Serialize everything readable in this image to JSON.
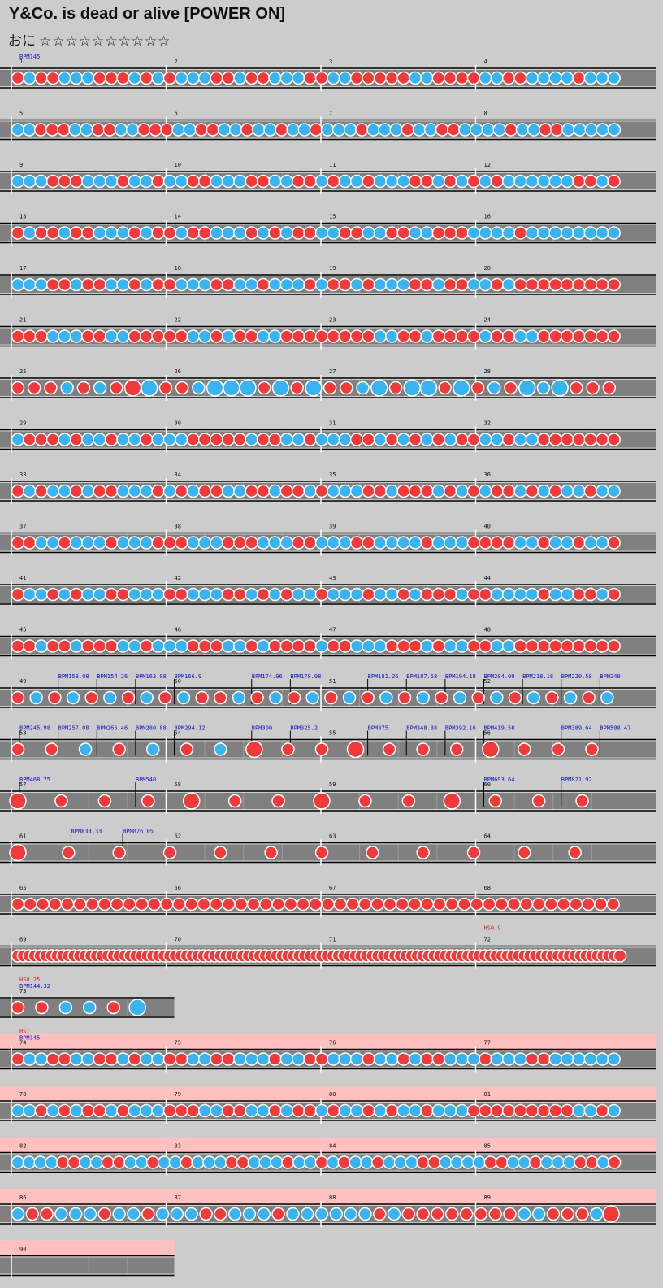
{
  "song": {
    "title": "Y&Co. is dead or alive [POWER ON]"
  },
  "course": {
    "label": "おに",
    "stars": "☆☆☆☆☆☆☆☆☆☆"
  },
  "colors": {
    "don": "#f23a3a",
    "ka": "#3ab4f0",
    "lane": "#808080",
    "gogo": "#ffc0c0",
    "bpm_text": "#1414c8",
    "hs_text": "#e02020"
  },
  "rows": [
    {
      "measures": [
        1,
        2,
        3,
        4
      ],
      "labels": [
        {
          "m": 1,
          "t": "BPM145",
          "k": "bpm"
        }
      ],
      "notes": "rbrrbbbrrrbrbrbbbrrbrrbbbrrbbrrrrrbbrrrrbbrrbbbbrbbb"
    },
    {
      "measures": [
        5,
        6,
        7,
        8
      ],
      "notes": "bbrrrbbrrbbrrrbbrrbbrbbrbbrbbbrbbbrbbrrbbbbrbbrrbbbbb"
    },
    {
      "measures": [
        9,
        10,
        11,
        12
      ],
      "notes": "bbbrrrbbbrbbrbbrrbbbrrbbrrbrbbrbbbrrbrbrbrbbbbbbrrbr"
    },
    {
      "measures": [
        13,
        14,
        15,
        16
      ],
      "notes": "rbrrbrrbbbrbrrbrrbbbrbrbrrbbrrbbrrbbrrrbbbbrbbbbbbbb"
    },
    {
      "measures": [
        17,
        18,
        19,
        20
      ],
      "notes": "bbbrrbrrbbrbrrbbbrrbbrbbbrbrrbrbbbrrbrrbbrbrrrrrrrrr"
    },
    {
      "measures": [
        21,
        22,
        23,
        24
      ],
      "notes": "rrrbbbrrbbrrrrrbbrbrrbbrrrrrrrrbbrrbrrrrbrrbbrrrrrrr"
    },
    {
      "measures": [
        25,
        26,
        27,
        28
      ],
      "notes": "rrrbrbrRBrrbBBBrBrBrrbBrBBrBrbrBbBrrr"
    },
    {
      "measures": [
        29,
        30,
        31,
        32
      ],
      "notes": "brrrbrbbrbbrbbbrrrrrbrrbbrbbbrrbrbrbrbrrbbrbbrrrrrrr"
    },
    {
      "measures": [
        33,
        34,
        35,
        36
      ],
      "notes": "rbrbbrbrrbbbrbrbrrbbrrbrrbrbbbrrbrrrbrbrbrrbrbrbbrbb"
    },
    {
      "measures": [
        37,
        38,
        39,
        40
      ],
      "notes": "rrbbrbbbrbbbrrrbbbrrrbbbrrbbbrrbbbbrbbbrrrrbbrbbrbbr"
    },
    {
      "measures": [
        41,
        42,
        43,
        44
      ],
      "notes": "rbbrbrbbrrbbbrrbbbrrbrbrbbrbbbrbbrbrrrbrrbbbbrbbrrbr"
    },
    {
      "measures": [
        45,
        46,
        47,
        48
      ],
      "notes": "rrbrrbrrrbbrbbbrrrbbrbrrrrbrrbbbrrrbrbbrrbbrrrrrrrrr"
    },
    {
      "measures": [
        49,
        50,
        51,
        52
      ],
      "labels": [
        {
          "m": 49,
          "f": 0.25,
          "t": "BPM153.08",
          "k": "bpm",
          "tick": true
        },
        {
          "m": 49,
          "f": 0.5,
          "t": "BPM154.26",
          "k": "bpm",
          "tick": true
        },
        {
          "m": 49,
          "f": 0.75,
          "t": "BPM163.08",
          "k": "bpm",
          "tick": true
        },
        {
          "m": 50,
          "f": 0,
          "t": "BPM166.9",
          "k": "bpm",
          "tick": true
        },
        {
          "m": 50,
          "f": 0.5,
          "t": "BPM174.96",
          "k": "bpm",
          "tick": true
        },
        {
          "m": 50,
          "f": 0.75,
          "t": "BPM178.08",
          "k": "bpm",
          "tick": true
        },
        {
          "m": 51,
          "f": 0.25,
          "t": "BPM181.26",
          "k": "bpm",
          "tick": true
        },
        {
          "m": 51,
          "f": 0.5,
          "t": "BPM187.58",
          "k": "bpm",
          "tick": true
        },
        {
          "m": 51,
          "f": 0.75,
          "t": "BPM194.18",
          "k": "bpm",
          "tick": true
        },
        {
          "m": 52,
          "f": 0,
          "t": "BPM204.09",
          "k": "bpm",
          "tick": true
        },
        {
          "m": 52,
          "f": 0.25,
          "t": "BPM218.18",
          "k": "bpm",
          "tick": true
        },
        {
          "m": 52,
          "f": 0.5,
          "t": "BPM220.58",
          "k": "bpm",
          "tick": true
        },
        {
          "m": 52,
          "f": 0.75,
          "t": "BPM240",
          "k": "bpm",
          "tick": true
        }
      ],
      "notes": "rbrbrbrbrbrrbrbrbrbrbrbrbrbrbrbrb"
    },
    {
      "measures": [
        53,
        54,
        55,
        56
      ],
      "labels": [
        {
          "m": 53,
          "f": 0,
          "t": "BPM245.98",
          "k": "bpm",
          "tick": true
        },
        {
          "m": 53,
          "f": 0.25,
          "t": "BPM257.08",
          "k": "bpm",
          "tick": true
        },
        {
          "m": 53,
          "f": 0.5,
          "t": "BPM265.46",
          "k": "bpm",
          "tick": true
        },
        {
          "m": 53,
          "f": 0.75,
          "t": "BPM280.88",
          "k": "bpm",
          "tick": true
        },
        {
          "m": 54,
          "f": 0,
          "t": "BPM294.12",
          "k": "bpm",
          "tick": true
        },
        {
          "m": 54,
          "f": 0.5,
          "t": "BPM300",
          "k": "bpm",
          "tick": true
        },
        {
          "m": 54,
          "f": 0.75,
          "t": "BPM325.2",
          "k": "bpm",
          "tick": true
        },
        {
          "m": 55,
          "f": 0.25,
          "t": "BPM375",
          "k": "bpm",
          "tick": true
        },
        {
          "m": 55,
          "f": 0.5,
          "t": "BPM348.88",
          "k": "bpm",
          "tick": true
        },
        {
          "m": 55,
          "f": 0.75,
          "t": "BPM392.16",
          "k": "bpm",
          "tick": true
        },
        {
          "m": 56,
          "f": 0,
          "t": "BPM419.58",
          "k": "bpm",
          "tick": true
        },
        {
          "m": 56,
          "f": 0.5,
          "t": "BPM389.64",
          "k": "bpm",
          "tick": true
        },
        {
          "m": 56,
          "f": 0.75,
          "t": "BPM508.47",
          "k": "bpm",
          "tick": true
        }
      ],
      "notes": "rrbrbrbRrrRrrrRrrr"
    },
    {
      "measures": [
        57,
        58,
        59,
        60
      ],
      "labels": [
        {
          "m": 57,
          "f": 0,
          "t": "BPM468.75",
          "k": "bpm",
          "tick": true
        },
        {
          "m": 57,
          "f": 0.75,
          "t": "BPM540",
          "k": "bpm",
          "tick": true
        },
        {
          "m": 60,
          "f": 0,
          "t": "BPM693.64",
          "k": "bpm",
          "tick": true
        },
        {
          "m": 60,
          "f": 0.5,
          "t": "BPM821.92",
          "k": "bpm",
          "tick": true
        }
      ],
      "notes": "RrrrRrrRrrRrrr"
    },
    {
      "measures": [
        61,
        62,
        63,
        64
      ],
      "labels": [
        {
          "m": 61,
          "f": 0.333,
          "t": "BPM833.33",
          "k": "bpm",
          "tick": true
        },
        {
          "m": 61,
          "f": 0.667,
          "t": "BPM876.05",
          "k": "bpm",
          "tick": true
        }
      ],
      "notes": "Rrrrrrrrrrrr"
    },
    {
      "measures": [
        65,
        66,
        67,
        68
      ],
      "notes": "rrrrrrrrrrrrrrrrrrrrrrrrrrrrrrrrrrrrrrrrrrrrrrrrr"
    },
    {
      "measures": [
        69,
        70,
        71,
        72
      ],
      "labels": [
        {
          "m": 72,
          "f": 0,
          "t": "HS0.9",
          "k": "hs",
          "line": 0
        }
      ],
      "notes": "rrrrrrrrrrrrrrrrrrrrrrrrrrrrrrrrrrrrrrrrrrrrrrrrrrrrrrrrrrrrrrrrrrrrrrrrrrrrrrrrrrrrrrrrrrrrrrrrrrrrrrrrrrrr"
    },
    {
      "measures": [
        73
      ],
      "labels": [
        {
          "m": 73,
          "f": 0,
          "t": "HS0.25",
          "k": "hs",
          "line": 0
        },
        {
          "m": 73,
          "f": 0,
          "t": "BPM144.32",
          "k": "bpm",
          "line": 1
        }
      ],
      "notes": "rrbbrB"
    },
    {
      "measures": [
        74,
        75,
        76,
        77
      ],
      "gogo": true,
      "labels": [
        {
          "m": 74,
          "f": 0,
          "t": "HS1",
          "k": "hs",
          "line": 0
        },
        {
          "m": 74,
          "f": 0,
          "t": "BPM145",
          "k": "bpm",
          "line": 1
        }
      ],
      "notes": "rbbrrbbrrbrbbrrbbrrbbbrbbrrbbbrbbrbrrbbbrbbbrrbbbbbb"
    },
    {
      "measures": [
        78,
        79,
        80,
        81
      ],
      "gogo": true,
      "notes": "bbrbrbrrbrbbbrrrbbrrbbrbrrbrbbrbrbbrbbbrrrrrrrrrbbrb"
    },
    {
      "measures": [
        82,
        83,
        84,
        85
      ],
      "gogo": true,
      "notes": "bbbbrrbbrrbbrbbrbbbrrbbbrbbrbrbbrbbbrrbbbbrrbbrbbbrrbr"
    },
    {
      "measures": [
        86,
        87,
        88,
        89
      ],
      "gogo": true,
      "notes": "brrbbbrbbrbbbrrbbbrbbbbbbrbrrrrrrrrbbrrrbR"
    },
    {
      "measures": [
        90
      ],
      "gogo": true,
      "notes": ""
    }
  ]
}
